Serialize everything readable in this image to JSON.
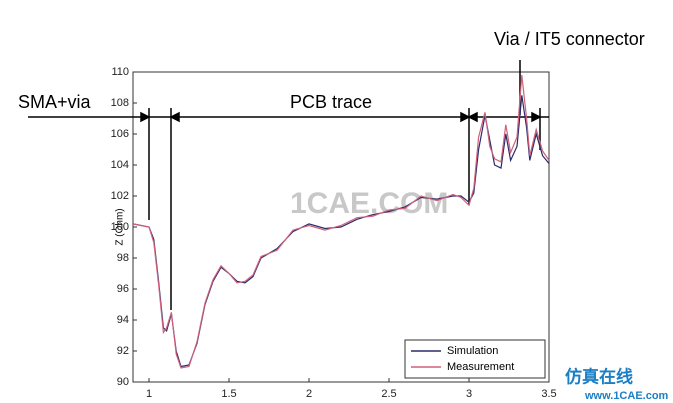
{
  "chart_data": {
    "type": "line",
    "y_label": "Z (Ohm)",
    "annotations": [
      "SMA+via",
      "PCB trace",
      "Via / IT5 connector"
    ],
    "watermark": "1CAE.COM",
    "footer": [
      "仿真在线",
      "www.1CAE.com"
    ],
    "x": [
      0.9,
      1.0,
      1.03,
      1.06,
      1.09,
      1.11,
      1.14,
      1.17,
      1.2,
      1.25,
      1.3,
      1.35,
      1.4,
      1.45,
      1.5,
      1.55,
      1.6,
      1.65,
      1.7,
      1.8,
      1.9,
      2.0,
      2.1,
      2.2,
      2.3,
      2.4,
      2.5,
      2.6,
      2.7,
      2.8,
      2.9,
      2.95,
      3.0,
      3.03,
      3.06,
      3.1,
      3.13,
      3.16,
      3.2,
      3.23,
      3.26,
      3.3,
      3.33,
      3.36,
      3.38,
      3.42,
      3.46,
      3.5
    ],
    "series": [
      {
        "name": "Simulation",
        "color": "#2b2b6b",
        "values": [
          100.2,
          100.0,
          99.2,
          96.5,
          93.5,
          93.3,
          94.4,
          92.0,
          91.0,
          91.1,
          92.5,
          95.0,
          96.5,
          97.4,
          97.0,
          96.5,
          96.4,
          96.8,
          98.0,
          98.6,
          99.7,
          100.2,
          99.9,
          100.0,
          100.5,
          100.8,
          101.0,
          101.3,
          101.9,
          101.8,
          102.0,
          102.0,
          101.6,
          102.2,
          105.0,
          107.2,
          105.6,
          104.0,
          103.8,
          106.0,
          104.3,
          105.2,
          108.5,
          106.4,
          104.3,
          106.0,
          104.6,
          104.1
        ]
      },
      {
        "name": "Measurement",
        "color": "#d0607a",
        "values": [
          100.2,
          100.0,
          99.0,
          96.3,
          93.2,
          93.5,
          94.5,
          91.8,
          90.9,
          91.0,
          92.6,
          95.1,
          96.6,
          97.5,
          97.0,
          96.4,
          96.5,
          96.9,
          98.1,
          98.5,
          99.8,
          100.1,
          99.8,
          100.1,
          100.6,
          100.7,
          101.1,
          101.2,
          102.0,
          101.7,
          102.1,
          101.9,
          101.4,
          102.5,
          105.8,
          107.4,
          105.2,
          104.4,
          104.2,
          106.6,
          104.8,
          105.8,
          109.8,
          107.0,
          104.6,
          106.3,
          104.9,
          104.3
        ]
      }
    ],
    "xlim": [
      0.9,
      3.5
    ],
    "xticks": [
      1,
      1.5,
      2,
      2.5,
      3,
      3.5
    ],
    "ylim": [
      90,
      110
    ],
    "yticks": [
      90,
      92,
      94,
      96,
      98,
      100,
      102,
      104,
      106,
      108,
      110
    ],
    "grid": false,
    "legend": "lower right"
  }
}
